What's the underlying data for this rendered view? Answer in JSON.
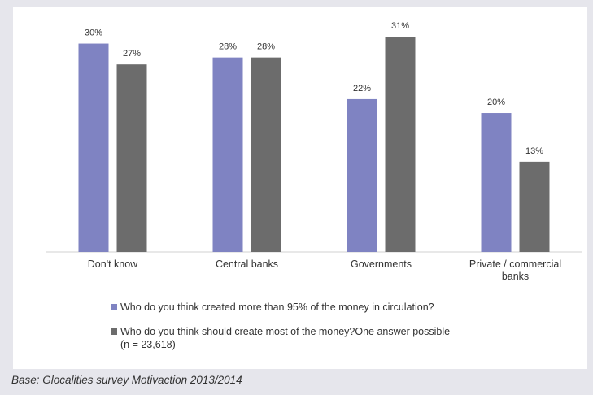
{
  "chart_data": {
    "type": "bar",
    "categories": [
      [
        "Don't know"
      ],
      [
        "Central banks"
      ],
      [
        "Governments"
      ],
      [
        "Private / commercial",
        "banks"
      ]
    ],
    "series": [
      {
        "name": "Who do you think created more than 95% of the money in circulation?",
        "values": [
          30,
          28,
          22,
          20
        ],
        "labels": [
          "30%",
          "28%",
          "22%",
          "20%"
        ],
        "color": "#7f83c2"
      },
      {
        "name": "Who do you think should create most of the money?One answer possible",
        "values": [
          27,
          28,
          31,
          13
        ],
        "labels": [
          "27%",
          "28%",
          "31%",
          "13%"
        ],
        "color": "#6c6c6c"
      }
    ],
    "ylim": [
      0,
      31
    ],
    "grid": false,
    "legend_position": "bottom"
  },
  "legend": {
    "item1": "Who do you think created more than 95% of the money in circulation?",
    "item2_line1": "Who do you think should create most of the money?One answer possible",
    "item2_line2": "(n = 23,618)"
  },
  "source_note": "Base: Glocalities survey Motivaction 2013/2014"
}
